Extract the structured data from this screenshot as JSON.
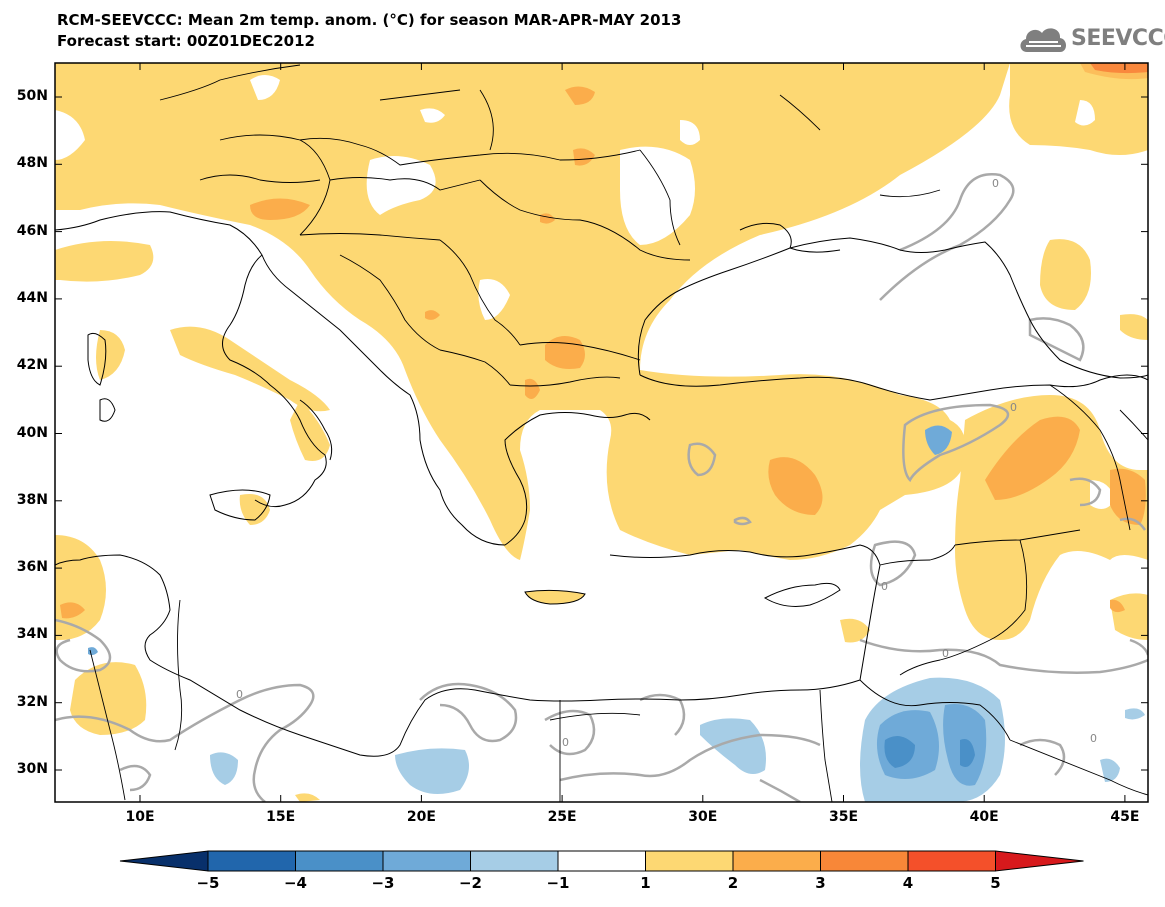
{
  "header": {
    "line1": "RCM-SEEVCCC: Mean 2m temp. anom. (°C) for season MAR-APR-MAY 2013",
    "line2": "Forecast start: 00Z01DEC2012"
  },
  "logo": {
    "text": "SEEVCCC",
    "icon": "cloud-icon"
  },
  "map": {
    "lat_labels": [
      "50N",
      "48N",
      "46N",
      "44N",
      "42N",
      "40N",
      "38N",
      "36N",
      "34N",
      "32N",
      "30N"
    ],
    "lon_labels": [
      "10E",
      "15E",
      "20E",
      "25E",
      "30E",
      "35E",
      "40E",
      "45E"
    ],
    "contour_label": "0"
  },
  "colorbar": {
    "labels": [
      "−5",
      "−4",
      "−3",
      "−2",
      "−1",
      "1",
      "2",
      "3",
      "4",
      "5"
    ],
    "colors": [
      "#08306b",
      "#2166ac",
      "#4a90c8",
      "#6faad8",
      "#a6cde6",
      "#ffffff",
      "#fdd873",
      "#fbad4b",
      "#f88738",
      "#f4502a",
      "#d7191c"
    ]
  },
  "colors": {
    "anomaly_1_2": "#fdd873",
    "anomaly_2_3": "#fbad4b",
    "anomaly_3_4": "#f88738",
    "anomaly_4_5": "#f4502a",
    "anomaly_m1_m2": "#a6cde6",
    "anomaly_m2_m3": "#6faad8",
    "anomaly_m3_m4": "#4a90c8",
    "contour_zero": "#a9a9a9",
    "border": "#000000"
  }
}
